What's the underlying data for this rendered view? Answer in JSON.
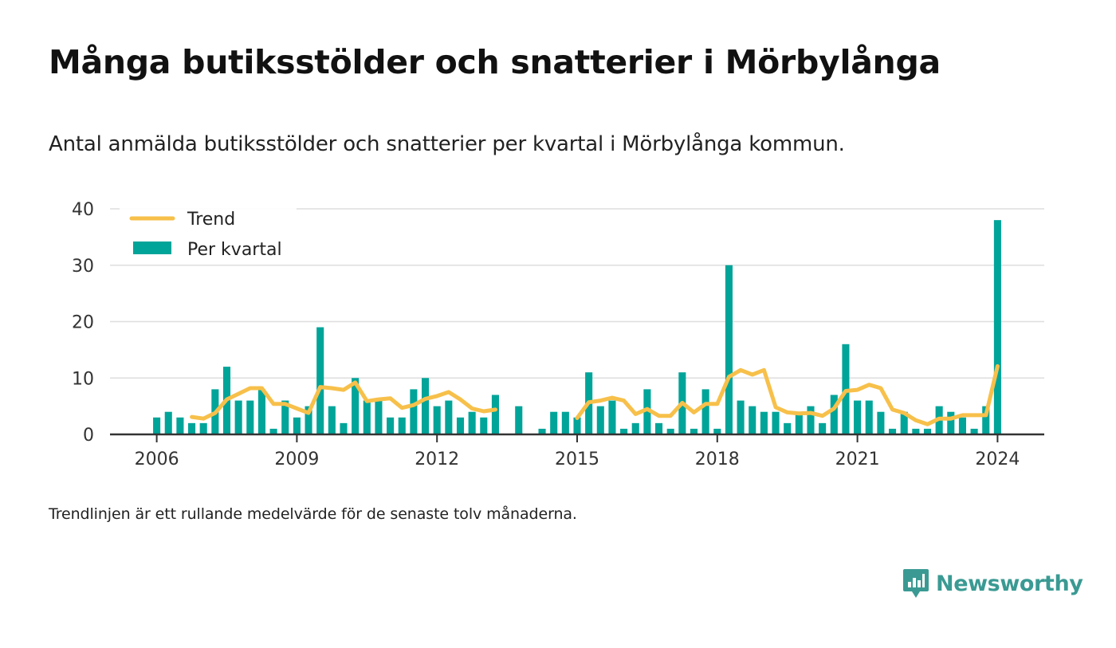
{
  "title": "Många butiksstölder och snatterier i Mörbylånga",
  "subtitle": "Antal anmälda butiksstölder och snatterier per kvartal i Mörbylånga kommun.",
  "footnote": "Trendlinjen är ett rullande medelvärde för de senaste tolv månaderna.",
  "brand": {
    "name": "Newsworthy",
    "icon": "newsworthy-logo-icon",
    "color": "#3a9a93"
  },
  "chart_data": {
    "type": "bar",
    "x_unit": "quarter",
    "start": "2006-Q1",
    "ylim": [
      0,
      40
    ],
    "yticks": [
      0,
      10,
      20,
      30,
      40
    ],
    "xticks": [
      "2006",
      "2009",
      "2012",
      "2015",
      "2018",
      "2021",
      "2024"
    ],
    "xlim": [
      "2005",
      "2025"
    ],
    "grid": true,
    "legend_position": "top-left",
    "colors": {
      "bars": "#00a499",
      "trend": "#f7c04a"
    },
    "series": [
      {
        "name": "Per kvartal",
        "type": "bar",
        "values": [
          3,
          4,
          3,
          2,
          2,
          8,
          12,
          6,
          6,
          8,
          1,
          6,
          3,
          5,
          19,
          5,
          2,
          10,
          6,
          6,
          3,
          3,
          8,
          10,
          5,
          6,
          3,
          4,
          3,
          7,
          null,
          5,
          null,
          1,
          4,
          4,
          3,
          11,
          5,
          6,
          1,
          2,
          8,
          2,
          1,
          11,
          1,
          8,
          1,
          30,
          6,
          5,
          4,
          4,
          2,
          4,
          5,
          2,
          7,
          16,
          6,
          6,
          4,
          1,
          4,
          1,
          1,
          5,
          4,
          3,
          1,
          5,
          38
        ]
      },
      {
        "name": "Trend",
        "type": "line",
        "values": [
          null,
          null,
          null,
          3.1,
          2.8,
          3.8,
          6.2,
          7.2,
          8.2,
          8.2,
          5.4,
          5.4,
          4.6,
          3.8,
          8.4,
          8.2,
          7.9,
          9.2,
          5.9,
          6.2,
          6.4,
          4.7,
          5.2,
          6.3,
          6.8,
          7.5,
          6.2,
          4.6,
          4.1,
          4.4,
          null,
          null,
          null,
          null,
          null,
          null,
          2.9,
          5.7,
          6,
          6.5,
          6,
          3.6,
          4.5,
          3.3,
          3.3,
          5.6,
          3.9,
          5.4,
          5.4,
          10.2,
          11.4,
          10.6,
          11.4,
          4.8,
          3.9,
          3.7,
          3.8,
          3.3,
          4.6,
          7.7,
          7.9,
          8.8,
          8.2,
          4.4,
          3.8,
          2.5,
          1.8,
          2.8,
          2.8,
          3.4,
          3.4,
          3.4,
          12.1
        ]
      }
    ]
  }
}
